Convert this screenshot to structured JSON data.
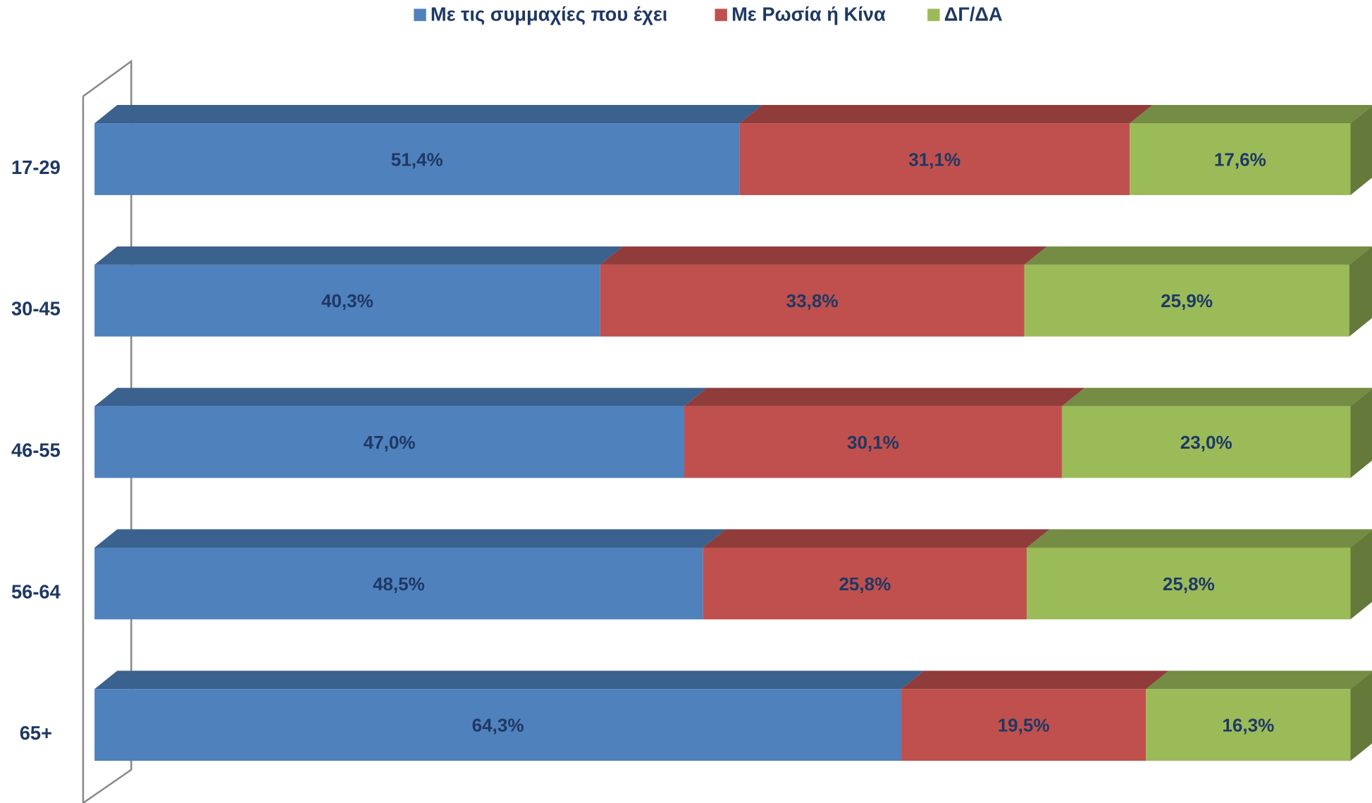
{
  "chart_data": {
    "type": "bar",
    "orientation": "horizontal",
    "stacked": true,
    "categories": [
      "17-29",
      "30-45",
      "46-55",
      "56-64",
      "65+"
    ],
    "xlim": [
      0,
      100
    ],
    "series": [
      {
        "name": "Με τις συμμαχίες που έχει",
        "color": "#4f81bd",
        "values": [
          51.4,
          40.3,
          47.0,
          48.5,
          64.3
        ],
        "value_labels": [
          "51,4%",
          "40,3%",
          "47,0%",
          "48,5%",
          "64,3%"
        ]
      },
      {
        "name": "Με Ρωσία ή Κίνα",
        "color": "#c0504d",
        "values": [
          31.1,
          33.8,
          30.1,
          25.8,
          19.5
        ],
        "value_labels": [
          "31,1%",
          "33,8%",
          "30,1%",
          "25,8%",
          "19,5%"
        ]
      },
      {
        "name": "ΔΓ/ΔΑ",
        "color": "#9bbb59",
        "values": [
          17.6,
          25.9,
          23.0,
          25.8,
          16.3
        ],
        "value_labels": [
          "17,6%",
          "25,9%",
          "23,0%",
          "25,8%",
          "16,3%"
        ]
      }
    ],
    "legend": "top"
  }
}
